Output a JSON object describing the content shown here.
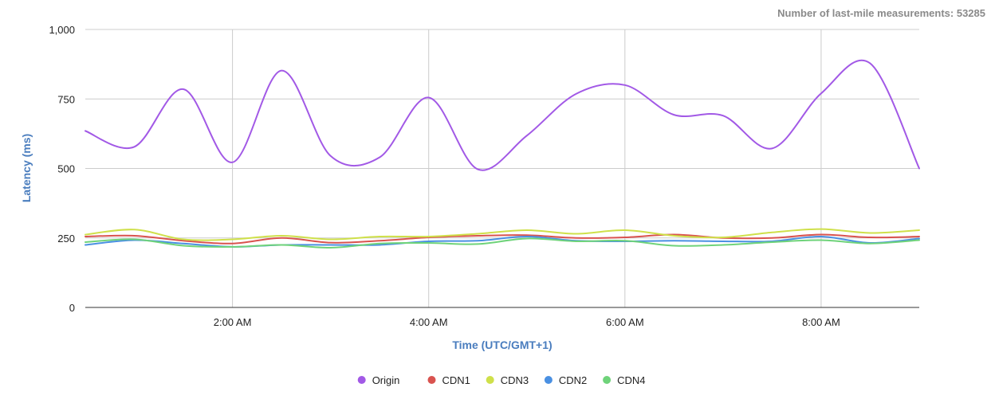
{
  "chart_data": {
    "type": "line",
    "measurement_note": "Number of last-mile measurements: 53285",
    "xlabel": "Time (UTC/GMT+1)",
    "ylabel": "Latency (ms)",
    "x_unit": "hours",
    "xlim": [
      0.5,
      9.0
    ],
    "ylim": [
      0,
      1000
    ],
    "y_ticks": [
      0,
      250,
      500,
      750,
      1000
    ],
    "y_tick_labels": [
      "0",
      "250",
      "500",
      "750",
      "1,000"
    ],
    "x_ticks": [
      2,
      4,
      6,
      8
    ],
    "x_tick_labels": [
      "2:00 AM",
      "4:00 AM",
      "6:00 AM",
      "8:00 AM"
    ],
    "grid": true,
    "legend_position": "bottom",
    "x": [
      0.5,
      1.0,
      1.5,
      2.0,
      2.5,
      3.0,
      3.5,
      4.0,
      4.5,
      5.0,
      5.5,
      6.0,
      6.5,
      7.0,
      7.5,
      8.0,
      8.5,
      9.0
    ],
    "series": [
      {
        "name": "Origin",
        "color": "#a259e6",
        "values": [
          635,
          578,
          785,
          522,
          852,
          545,
          540,
          755,
          497,
          618,
          768,
          800,
          693,
          690,
          572,
          770,
          878,
          500
        ]
      },
      {
        "name": "CDN1",
        "color": "#d9534f",
        "values": [
          255,
          258,
          240,
          230,
          250,
          233,
          240,
          252,
          258,
          260,
          250,
          252,
          262,
          250,
          250,
          262,
          252,
          255
        ]
      },
      {
        "name": "CDN3",
        "color": "#cfe04a",
        "values": [
          262,
          280,
          245,
          245,
          258,
          245,
          255,
          255,
          265,
          278,
          265,
          278,
          258,
          252,
          270,
          282,
          268,
          278
        ]
      },
      {
        "name": "CDN2",
        "color": "#4a90e2",
        "values": [
          225,
          242,
          230,
          218,
          225,
          225,
          225,
          238,
          240,
          255,
          240,
          238,
          240,
          238,
          238,
          255,
          232,
          248
        ]
      },
      {
        "name": "CDN4",
        "color": "#6fd37a",
        "values": [
          235,
          245,
          222,
          218,
          225,
          215,
          230,
          232,
          228,
          248,
          238,
          240,
          222,
          225,
          235,
          242,
          230,
          242
        ]
      }
    ],
    "colors": {
      "axis_title": "#4a7dbe",
      "tick_label": "#222222",
      "note_text": "#8a8a8a",
      "grid": "#cccccc",
      "axis_line": "#333333"
    }
  }
}
